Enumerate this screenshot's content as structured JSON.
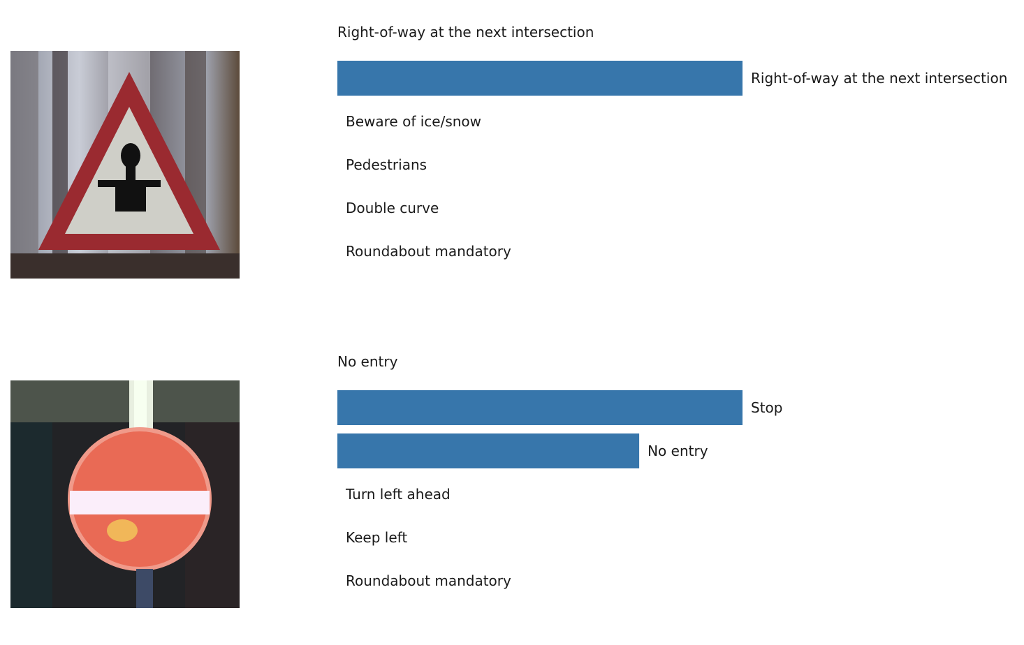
{
  "colors": {
    "bar": "#3776ab",
    "background": "#ffffff",
    "text": "#1a1a1a"
  },
  "panels": [
    {
      "true_label": "Right-of-way at the next intersection",
      "image_icon": "warning-triangle-sign-icon"
    },
    {
      "true_label": "No entry",
      "image_icon": "no-entry-sign-icon"
    }
  ],
  "chart_data": [
    {
      "type": "bar",
      "orientation": "horizontal",
      "categories": [
        "Right-of-way at the next intersection",
        "Beware of ice/snow",
        "Pedestrians",
        "Double curve",
        "Roundabout mandatory"
      ],
      "values": [
        1.0,
        0.0,
        0.0,
        0.0,
        0.0
      ],
      "xlim": [
        0,
        1
      ],
      "grid": false
    },
    {
      "type": "bar",
      "orientation": "horizontal",
      "categories": [
        "Stop",
        "No entry",
        "Turn left ahead",
        "Keep left",
        "Roundabout mandatory"
      ],
      "values": [
        1.0,
        0.745,
        0.0,
        0.0,
        0.0
      ],
      "xlim": [
        0,
        1
      ],
      "grid": false
    }
  ]
}
